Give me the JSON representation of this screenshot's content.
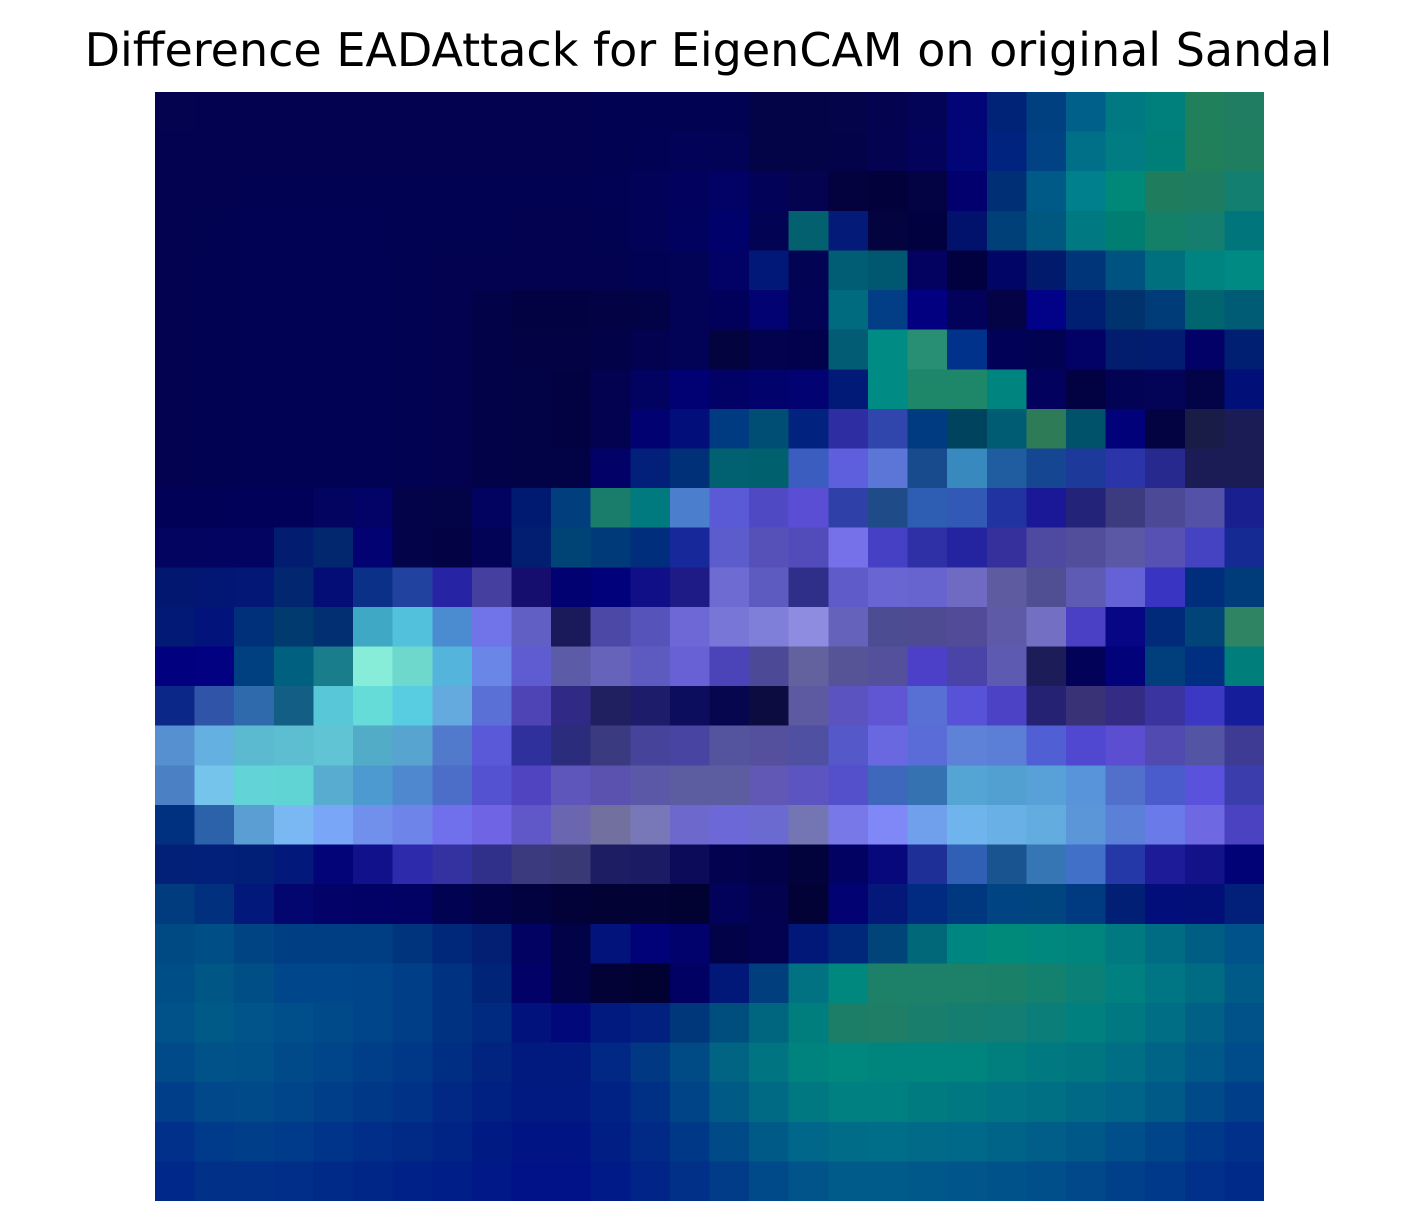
{
  "chart_data": {
    "type": "heatmap",
    "title": "Difference EADAttack for EigenCAM on original Sandal",
    "xlabel": "",
    "ylabel": "",
    "axes_visible": false,
    "rows": 28,
    "cols": 28,
    "cells": [
      [
        "#03034f",
        "#020250",
        "#020251",
        "#020251",
        "#020251",
        "#020251",
        "#020251",
        "#020251",
        "#020251",
        "#020251",
        "#020251",
        "#020252",
        "#020252",
        "#020252",
        "#020252",
        "#030447",
        "#030447",
        "#030449",
        "#030350",
        "#030358",
        "#010576",
        "#002277",
        "#004080",
        "#00608a",
        "#007982",
        "#00807c",
        "#20805c",
        "#207d62"
      ],
      [
        "#020250",
        "#020250",
        "#020251",
        "#020251",
        "#020251",
        "#020251",
        "#020251",
        "#020251",
        "#020251",
        "#020251",
        "#020251",
        "#020252",
        "#020254",
        "#020258",
        "#020257",
        "#030348",
        "#030348",
        "#03034a",
        "#030352",
        "#03035c",
        "#020578",
        "#002380",
        "#004284",
        "#007089",
        "#007c82",
        "#007f78",
        "#218059",
        "#1f7d60"
      ],
      [
        "#020250",
        "#020251",
        "#020252",
        "#020253",
        "#020253",
        "#020253",
        "#020252",
        "#020252",
        "#020252",
        "#020252",
        "#020252",
        "#020254",
        "#020258",
        "#02025e",
        "#010166",
        "#020258",
        "#030350",
        "#03023e",
        "#02013b",
        "#030242",
        "#01006e",
        "#002f76",
        "#005a87",
        "#007f8c",
        "#008878",
        "#1f7c5c",
        "#1e7c60",
        "#137f70"
      ],
      [
        "#020250",
        "#020252",
        "#020254",
        "#020254",
        "#020254",
        "#020254",
        "#020253",
        "#020252",
        "#020252",
        "#020251",
        "#020251",
        "#020253",
        "#020258",
        "#01015f",
        "#01016c",
        "#030353",
        "#03606f",
        "#031a78",
        "#030340",
        "#02013f",
        "#01126c",
        "#004078",
        "#005880",
        "#007982",
        "#007e72",
        "#158068",
        "#157e6e",
        "#00757c"
      ],
      [
        "#020251",
        "#020253",
        "#020254",
        "#020254",
        "#020254",
        "#020254",
        "#020252",
        "#020250",
        "#020250",
        "#020250",
        "#020250",
        "#020251",
        "#020254",
        "#020257",
        "#010166",
        "#021879",
        "#030353",
        "#015d74",
        "#005870",
        "#030261",
        "#02013f",
        "#010565",
        "#021a6b",
        "#00357a",
        "#005381",
        "#00707e",
        "#008482",
        "#008a84"
      ],
      [
        "#020251",
        "#020253",
        "#020254",
        "#020254",
        "#020254",
        "#020254",
        "#020252",
        "#020250",
        "#020248",
        "#020243",
        "#020243",
        "#020244",
        "#020247",
        "#020257",
        "#01015c",
        "#020272",
        "#030356",
        "#006a7e",
        "#023e85",
        "#020080",
        "#02025a",
        "#030345",
        "#010287",
        "#001e72",
        "#00336e",
        "#003c77",
        "#00656e",
        "#005b75"
      ],
      [
        "#020251",
        "#020253",
        "#020254",
        "#020254",
        "#020254",
        "#020254",
        "#020252",
        "#020250",
        "#020248",
        "#020245",
        "#020244",
        "#020248",
        "#020250",
        "#020256",
        "#030340",
        "#02024f",
        "#02024c",
        "#015c74",
        "#008b84",
        "#288f75",
        "#00318b",
        "#010158",
        "#020252",
        "#010166",
        "#021c6e",
        "#011c70",
        "#010168",
        "#011f72"
      ],
      [
        "#020251",
        "#020253",
        "#020254",
        "#020254",
        "#020254",
        "#020254",
        "#020252",
        "#020250",
        "#020248",
        "#020246",
        "#020243",
        "#020250",
        "#020260",
        "#010174",
        "#010166",
        "#02026c",
        "#020272",
        "#011a78",
        "#008c84",
        "#1e8669",
        "#1e8669",
        "#008480",
        "#02025e",
        "#020242",
        "#030356",
        "#030358",
        "#030347",
        "#001078"
      ],
      [
        "#020251",
        "#020253",
        "#020254",
        "#020254",
        "#020254",
        "#020254",
        "#020252",
        "#020250",
        "#020248",
        "#020246",
        "#020242",
        "#020250",
        "#010172",
        "#020e7a",
        "#003b82",
        "#004e73",
        "#022280",
        "#2e2ea2",
        "#3146ad",
        "#003b82",
        "#00435f",
        "#005c72",
        "#2e7c57",
        "#00516a",
        "#01017a",
        "#030342",
        "#181c46",
        "#1b1c55"
      ],
      [
        "#020251",
        "#020253",
        "#020254",
        "#020254",
        "#020254",
        "#020254",
        "#020252",
        "#020250",
        "#020248",
        "#020246",
        "#020247",
        "#010168",
        "#021f7a",
        "#003077",
        "#016170",
        "#00606d",
        "#3b5dc0",
        "#5e5fdc",
        "#5b76d6",
        "#174b8e",
        "#3889be",
        "#1f5da0",
        "#154691",
        "#1d399a",
        "#2b34a9",
        "#28298f",
        "#1b1c55",
        "#1b1c55"
      ],
      [
        "#020158",
        "#020158",
        "#020159",
        "#02015a",
        "#030360",
        "#020267",
        "#03034a",
        "#030347",
        "#020260",
        "#011a71",
        "#003e7d",
        "#1a7c6a",
        "#007a7e",
        "#4b7ecc",
        "#5b5ad6",
        "#4f4ac4",
        "#5a4fd4",
        "#2f41a9",
        "#1f4b89",
        "#2e5eb4",
        "#3259b6",
        "#2133a1",
        "#1a1897",
        "#23237a",
        "#3c3b7f",
        "#4c4a96",
        "#5451a8",
        "#191f8e"
      ],
      [
        "#030360",
        "#030361",
        "#030361",
        "#021d6f",
        "#02276e",
        "#020272",
        "#03034a",
        "#020245",
        "#020257",
        "#011e70",
        "#004476",
        "#003a78",
        "#002d7c",
        "#17289b",
        "#5d5ccd",
        "#5551b9",
        "#514cba",
        "#7671e8",
        "#4540c4",
        "#2f2fa6",
        "#2524a0",
        "#35309c",
        "#4e4aa2",
        "#524e9c",
        "#5b58a6",
        "#5651b2",
        "#4543c2",
        "#152a93"
      ],
      [
        "#021770",
        "#021674",
        "#021776",
        "#022770",
        "#040c75",
        "#0a3088",
        "#2242a0",
        "#2623a4",
        "#4540a0",
        "#160e6e",
        "#010171",
        "#01017c",
        "#100f88",
        "#1e1a86",
        "#6e6cd2",
        "#5d5bc0",
        "#2f2f8a",
        "#5f5bc9",
        "#6966d4",
        "#6764d0",
        "#6f6bc2",
        "#5e5ba0",
        "#504f94",
        "#5d5bb4",
        "#6462d6",
        "#3a34c2",
        "#002e7d",
        "#003c7a"
      ],
      [
        "#021a75",
        "#02137c",
        "#00307a",
        "#003a6e",
        "#022f72",
        "#3fa8c4",
        "#52c2dc",
        "#4a8ccf",
        "#7074e8",
        "#615fc3",
        "#1a1a5a",
        "#4b48a6",
        "#5653ba",
        "#6d68d6",
        "#7877d8",
        "#7f7ed8",
        "#8d8ce0",
        "#6562bc",
        "#4c4c92",
        "#4e4b92",
        "#524c98",
        "#5e5aa8",
        "#7370c4",
        "#4a40c6",
        "#070785",
        "#022a7a",
        "#004478",
        "#2f8463"
      ],
      [
        "#010180",
        "#010181",
        "#004080",
        "#006080",
        "#1a7d8c",
        "#87ecd8",
        "#6ed8cc",
        "#54b4dc",
        "#6a86e6",
        "#5e5cd0",
        "#5c5ba8",
        "#6663ba",
        "#5e5bc0",
        "#6861d6",
        "#4a44b8",
        "#4c4a96",
        "#63619e",
        "#565496",
        "#54509c",
        "#4c40c8",
        "#4a44a8",
        "#5d5ab2",
        "#1c1c58",
        "#020258",
        "#02027a",
        "#003e7c",
        "#002e80",
        "#007e7c"
      ],
      [
        "#0b2788",
        "#3054a8",
        "#2e6aac",
        "#125e84",
        "#58c8d8",
        "#66dcd8",
        "#58cce0",
        "#64aadf",
        "#5a70d6",
        "#4e44b6",
        "#302a86",
        "#202060",
        "#1c1c6a",
        "#0d0d5e",
        "#06064e",
        "#0c0c40",
        "#5e5aa2",
        "#5b54c0",
        "#6056d4",
        "#5870d4",
        "#5852d8",
        "#4b42c6",
        "#252274",
        "#3a3276",
        "#342c84",
        "#3a34a0",
        "#3c38c4",
        "#161d9a"
      ],
      [
        "#5790d0",
        "#64b0e0",
        "#5cbad0",
        "#5cbed0",
        "#60c4d4",
        "#52acc8",
        "#58a4d0",
        "#527acc",
        "#5a5ad8",
        "#30309c",
        "#2c2c7c",
        "#3a3a80",
        "#45449a",
        "#4744a2",
        "#54539e",
        "#54509e",
        "#5050a2",
        "#5558c8",
        "#6a68e0",
        "#5a6cd8",
        "#5e82d8",
        "#5b7fd6",
        "#5060d4",
        "#5048d0",
        "#5b4ed0",
        "#514ab0",
        "#5454a4",
        "#3e3b94"
      ],
      [
        "#4c80c4",
        "#74c4ec",
        "#62d4d8",
        "#60d4d4",
        "#58acd0",
        "#4c9ad0",
        "#5088d0",
        "#4c6ec8",
        "#5452d0",
        "#5044c0",
        "#5e56ba",
        "#5a52ae",
        "#5c58a8",
        "#5c5ca0",
        "#5c5ca0",
        "#6058b4",
        "#5c54c0",
        "#5450cc",
        "#3d68bc",
        "#3472b2",
        "#54a4d4",
        "#52a0d2",
        "#58a0d8",
        "#5894da",
        "#5070cc",
        "#4a5ccc",
        "#5a52dc",
        "#3c3dac"
      ],
      [
        "#003080",
        "#2b62aa",
        "#5a9ed4",
        "#7ab8f4",
        "#7aa6f8",
        "#7090ec",
        "#6e84e8",
        "#7170ec",
        "#6e64e4",
        "#6058c8",
        "#6a66b0",
        "#72709e",
        "#7878b8",
        "#6c68cc",
        "#6c68d8",
        "#6a6ad0",
        "#7476b4",
        "#7878e8",
        "#8088f8",
        "#70a0ec",
        "#70b4ee",
        "#68b0e6",
        "#62ace0",
        "#5a96d8",
        "#5a80d8",
        "#6a7ae8",
        "#6e68e2",
        "#4a42c0"
      ],
      [
        "#022078",
        "#02207a",
        "#021f78",
        "#02187a",
        "#020478",
        "#11118c",
        "#2d2aac",
        "#3332a0",
        "#30308a",
        "#3c3a7e",
        "#393976",
        "#1d1d64",
        "#1b1b64",
        "#0b0b5a",
        "#02024f",
        "#020248",
        "#02023c",
        "#020262",
        "#07087c",
        "#1e3098",
        "#3060b6",
        "#1a5490",
        "#3676b4",
        "#4070c8",
        "#2438a8",
        "#1d1b98",
        "#141289",
        "#020277"
      ],
      [
        "#003c7e",
        "#00307e",
        "#02187a",
        "#02066e",
        "#020268",
        "#020266",
        "#020264",
        "#020252",
        "#020248",
        "#020240",
        "#020238",
        "#020234",
        "#020234",
        "#020232",
        "#02025a",
        "#02024e",
        "#020236",
        "#020272",
        "#031879",
        "#012b80",
        "#003880",
        "#004484",
        "#004480",
        "#003a80",
        "#021f76",
        "#020f7a",
        "#020f78",
        "#02207a"
      ],
      [
        "#004a84",
        "#004e86",
        "#004484",
        "#003e84",
        "#003e84",
        "#003e84",
        "#00357e",
        "#00287a",
        "#021f74",
        "#020262",
        "#020248",
        "#02137c",
        "#020278",
        "#02026c",
        "#020248",
        "#020250",
        "#021878",
        "#00287a",
        "#00447a",
        "#006878",
        "#008680",
        "#008a7a",
        "#00877e",
        "#00847e",
        "#007a80",
        "#006c84",
        "#005e84",
        "#00528a"
      ],
      [
        "#004e88",
        "#005684",
        "#004e86",
        "#00468a",
        "#00468a",
        "#00448a",
        "#003e88",
        "#003282",
        "#002478",
        "#010168",
        "#020248",
        "#020236",
        "#020232",
        "#010164",
        "#021878",
        "#003e7e",
        "#007282",
        "#00887e",
        "#1d8068",
        "#1d8068",
        "#1d8068",
        "#1a8068",
        "#14806e",
        "#0a8076",
        "#008080",
        "#007684",
        "#006c84",
        "#005a88"
      ],
      [
        "#005288",
        "#005a88",
        "#00548a",
        "#004e8a",
        "#004a8a",
        "#00448a",
        "#003e88",
        "#003282",
        "#002a80",
        "#01127c",
        "#01087a",
        "#011a80",
        "#022080",
        "#00367a",
        "#004e7e",
        "#006680",
        "#007e7e",
        "#1d7e68",
        "#1e7e66",
        "#1a7e6c",
        "#167e70",
        "#127e74",
        "#0c7e7a",
        "#00807e",
        "#007882",
        "#006e84",
        "#006086",
        "#005288"
      ],
      [
        "#004a8a",
        "#005288",
        "#00508a",
        "#004a8a",
        "#00448a",
        "#003e8a",
        "#003888",
        "#002e82",
        "#002480",
        "#011a80",
        "#011a80",
        "#002884",
        "#003884",
        "#004a86",
        "#006482",
        "#007480",
        "#00827e",
        "#00887e",
        "#00857e",
        "#00847e",
        "#00847e",
        "#007f7e",
        "#007a80",
        "#007680",
        "#006e84",
        "#006486",
        "#005888",
        "#004c8a"
      ],
      [
        "#003e8a",
        "#00488a",
        "#004a8a",
        "#00448a",
        "#003e8a",
        "#003888",
        "#003288",
        "#002884",
        "#002082",
        "#011a82",
        "#011a82",
        "#002284",
        "#003086",
        "#004488",
        "#005a86",
        "#006a84",
        "#007882",
        "#008080",
        "#008080",
        "#007c80",
        "#007882",
        "#007484",
        "#007084",
        "#006a86",
        "#006488",
        "#005a88",
        "#004a8a",
        "#003e8a"
      ],
      [
        "#00308a",
        "#003a8a",
        "#003e8a",
        "#003a8a",
        "#00348a",
        "#002e88",
        "#002a86",
        "#002486",
        "#001a84",
        "#011484",
        "#011484",
        "#001e84",
        "#002a86",
        "#003888",
        "#004a88",
        "#005a88",
        "#00668a",
        "#006c88",
        "#006e88",
        "#006a88",
        "#006888",
        "#006488",
        "#005e88",
        "#005888",
        "#004e8a",
        "#00448a",
        "#00388a",
        "#00308a"
      ],
      [
        "#00288a",
        "#003088",
        "#003088",
        "#002e88",
        "#002a88",
        "#002688",
        "#002288",
        "#001e88",
        "#011888",
        "#011288",
        "#011288",
        "#001a88",
        "#002488",
        "#003088",
        "#003c88",
        "#004a8a",
        "#00548a",
        "#005a8a",
        "#005a8a",
        "#00588a",
        "#00568a",
        "#00528a",
        "#004e8a",
        "#00488a",
        "#00408a",
        "#00388a",
        "#00308a",
        "#002a8a"
      ]
    ]
  }
}
